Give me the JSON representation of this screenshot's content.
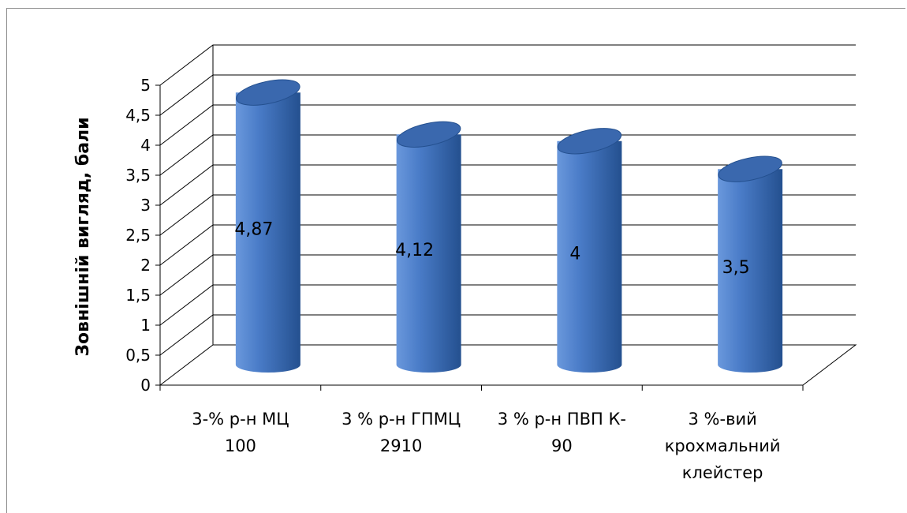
{
  "chart_data": {
    "type": "bar",
    "style": "3d-cylinder",
    "categories": [
      [
        "3-% р-н МЦ",
        "100"
      ],
      [
        "3 % р-н ГПМЦ",
        "2910"
      ],
      [
        "3 % р-н ПВП К-",
        "90"
      ],
      [
        "3 %-вий",
        "крохмальний",
        "клейстер"
      ]
    ],
    "values": [
      4.87,
      4.12,
      4,
      3.5
    ],
    "data_labels": [
      "4,87",
      "4,12",
      "4",
      "3,5"
    ],
    "ylabel": "Зовнішній вигляд, бали",
    "ylim": [
      0,
      5
    ],
    "yticks": [
      "0",
      "0,5",
      "1",
      "1,5",
      "2",
      "2,5",
      "3",
      "3,5",
      "4",
      "4,5",
      "5"
    ],
    "grid": true,
    "legend": "none",
    "colors": {
      "bar_light": "#6a98dc",
      "bar_mid": "#4a7cc8",
      "bar_dark": "#24508f",
      "bar_top": "#3a68ae",
      "grid": "#000000",
      "wall": "#ffffff"
    }
  }
}
